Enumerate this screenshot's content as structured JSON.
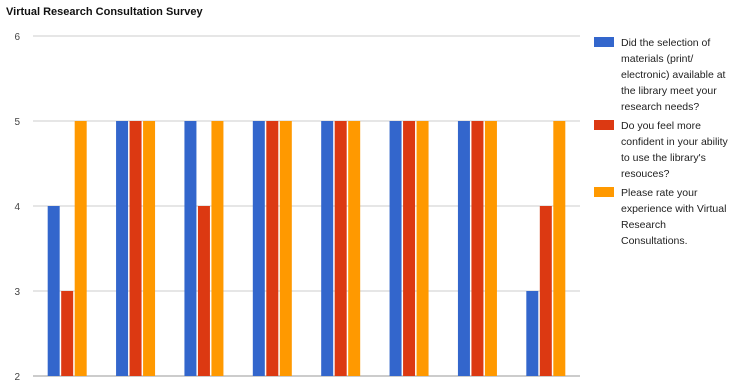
{
  "chart_data": {
    "type": "bar",
    "title": "Virtual Research Consultation Survey",
    "xlabel": "",
    "ylabel": "",
    "ylim": [
      2,
      6
    ],
    "yticks": [
      2,
      3,
      4,
      5,
      6
    ],
    "grid": true,
    "legend_position": "right",
    "categories": [
      "",
      "",
      "",
      "",
      "",
      "",
      "",
      ""
    ],
    "series": [
      {
        "name": "Did the selection of materials (print/ electronic) available at the library meet your research needs?",
        "color": "#3366cc",
        "values": [
          4,
          5,
          5,
          5,
          5,
          5,
          5,
          3
        ]
      },
      {
        "name": "Do you feel more confident in your ability to use the library's resouces?",
        "color": "#dc3912",
        "values": [
          3,
          5,
          4,
          5,
          5,
          5,
          5,
          4
        ]
      },
      {
        "name": "Please rate your experience with Virtual Research Consultations.",
        "color": "#ff9900",
        "values": [
          5,
          5,
          5,
          5,
          5,
          5,
          5,
          5
        ]
      }
    ]
  },
  "legend": {
    "lines": [
      [
        "Did the selection of",
        "materials (print/",
        "electronic) available at",
        "the library meet your",
        "research needs?"
      ],
      [
        "Do you feel more",
        "confident in your ability",
        "to use the library's",
        "resouces?"
      ],
      [
        "Please rate your",
        "experience with Virtual",
        "Research",
        "Consultations."
      ]
    ]
  }
}
